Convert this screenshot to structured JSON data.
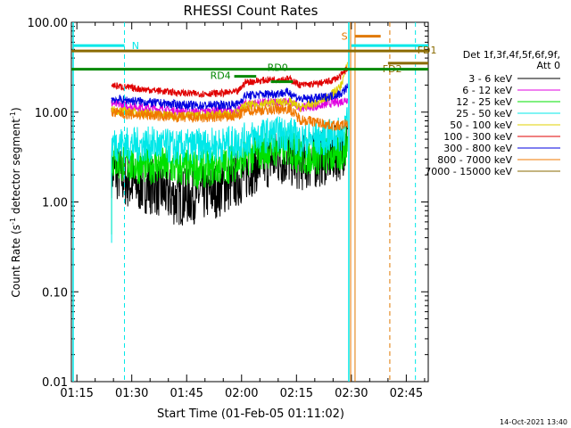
{
  "chart_data": {
    "type": "line",
    "title": "RHESSI Count Rates",
    "xlabel": "Start Time (01-Feb-05 01:11:02)",
    "ylabel_main": "Count Rate (s",
    "ylabel_sup1": "-1",
    "ylabel_mid": " detector segment",
    "ylabel_sup2": "-1",
    "ylabel_end": ")",
    "y_scale": "log",
    "ylim": [
      0.01,
      100
    ],
    "xlim_minutes": [
      73.5,
      171
    ],
    "x_ticks": [
      {
        "label": "01:15",
        "minute": 75
      },
      {
        "label": "01:30",
        "minute": 90
      },
      {
        "label": "01:45",
        "minute": 105
      },
      {
        "label": "02:00",
        "minute": 120
      },
      {
        "label": "02:15",
        "minute": 135
      },
      {
        "label": "02:30",
        "minute": 150
      },
      {
        "label": "02:45",
        "minute": 165
      }
    ],
    "y_ticks": [
      {
        "label": "100.00",
        "value": 100
      },
      {
        "label": "10.00",
        "value": 10
      },
      {
        "label": "1.00",
        "value": 1
      },
      {
        "label": "0.10",
        "value": 0.1
      },
      {
        "label": "0.01",
        "value": 0.01
      }
    ],
    "legend_header": [
      "Det 1f,3f,4f,5f,6f,9f,",
      "Att 0"
    ],
    "legend_position": "right",
    "series": [
      {
        "name": "3 - 6 keV",
        "color": "#000000",
        "points": [
          [
            84.5,
            2.3
          ],
          [
            90,
            1.6
          ],
          [
            96,
            1.5
          ],
          [
            102,
            1.1
          ],
          [
            108,
            1.2
          ],
          [
            114,
            1.4
          ],
          [
            119,
            1.8
          ],
          [
            124,
            2.6
          ],
          [
            128,
            3.0
          ],
          [
            133,
            3.1
          ],
          [
            136,
            2.7
          ],
          [
            140,
            2.9
          ],
          [
            144,
            3.3
          ],
          [
            147,
            3.6
          ],
          [
            149,
            5.0
          ]
        ]
      },
      {
        "name": "6 - 12 keV",
        "color": "#e000e0",
        "points": [
          [
            84.5,
            12.5
          ],
          [
            90,
            11.5
          ],
          [
            96,
            11
          ],
          [
            102,
            10.3
          ],
          [
            108,
            10
          ],
          [
            114,
            10.3
          ],
          [
            119,
            10.2
          ],
          [
            121,
            12.5
          ],
          [
            128,
            12.8
          ],
          [
            133,
            13
          ],
          [
            136,
            11.3
          ],
          [
            140,
            11.6
          ],
          [
            144,
            12.5
          ],
          [
            147,
            13
          ],
          [
            149,
            14
          ]
        ]
      },
      {
        "name": "12 - 25 keV",
        "color": "#00e000",
        "points": [
          [
            84.5,
            2.9
          ],
          [
            90,
            2.6
          ],
          [
            96,
            2.6
          ],
          [
            102,
            2.4
          ],
          [
            108,
            2.3
          ],
          [
            114,
            2.5
          ],
          [
            119,
            2.8
          ],
          [
            124,
            3.6
          ],
          [
            128,
            3.9
          ],
          [
            133,
            4.0
          ],
          [
            136,
            3.2
          ],
          [
            140,
            3.3
          ],
          [
            144,
            3.3
          ],
          [
            147,
            3.4
          ],
          [
            149,
            4.5
          ]
        ]
      },
      {
        "name": "25 - 50 keV",
        "color": "#00e8e8",
        "points": [
          [
            84.5,
            4.5
          ],
          [
            90,
            4.3
          ],
          [
            96,
            4.4
          ],
          [
            102,
            4.0
          ],
          [
            108,
            4.2
          ],
          [
            114,
            4.3
          ],
          [
            119,
            4.6
          ],
          [
            124,
            5.3
          ],
          [
            128,
            5.6
          ],
          [
            133,
            5.8
          ],
          [
            136,
            4.8
          ],
          [
            140,
            5.0
          ],
          [
            144,
            5.3
          ],
          [
            147,
            5.6
          ],
          [
            149,
            7.5
          ]
        ]
      },
      {
        "name": "50 - 100 keV",
        "color": "#e0d000",
        "points": [
          [
            84.5,
            10.5
          ],
          [
            90,
            10
          ],
          [
            96,
            9.6
          ],
          [
            102,
            9.1
          ],
          [
            108,
            9.2
          ],
          [
            114,
            9.5
          ],
          [
            119,
            9.8
          ],
          [
            121,
            11.8
          ],
          [
            128,
            12.6
          ],
          [
            133,
            13
          ],
          [
            136,
            11.2
          ],
          [
            140,
            12.5
          ],
          [
            144,
            15
          ],
          [
            147,
            19
          ],
          [
            149,
            35
          ]
        ]
      },
      {
        "name": "100 - 300 keV",
        "color": "#e00000",
        "points": [
          [
            84.5,
            20
          ],
          [
            90,
            18.5
          ],
          [
            96,
            17.5
          ],
          [
            102,
            16.5
          ],
          [
            108,
            16
          ],
          [
            114,
            16.2
          ],
          [
            119,
            16.8
          ],
          [
            121,
            21.5
          ],
          [
            128,
            23
          ],
          [
            133,
            23.5
          ],
          [
            136,
            20
          ],
          [
            140,
            20.5
          ],
          [
            144,
            22
          ],
          [
            147,
            25
          ],
          [
            149,
            31
          ]
        ]
      },
      {
        "name": "300 - 800 keV",
        "color": "#0000e0",
        "points": [
          [
            84.5,
            14
          ],
          [
            90,
            13.4
          ],
          [
            96,
            12.7
          ],
          [
            102,
            12.2
          ],
          [
            108,
            11.8
          ],
          [
            114,
            12
          ],
          [
            119,
            12.2
          ],
          [
            121,
            15.3
          ],
          [
            128,
            16
          ],
          [
            133,
            16.5
          ],
          [
            136,
            14
          ],
          [
            140,
            14.2
          ],
          [
            144,
            15
          ],
          [
            147,
            16
          ],
          [
            149,
            19
          ]
        ]
      },
      {
        "name": "800 - 7000 keV",
        "color": "#f07800",
        "points": [
          [
            84.5,
            10
          ],
          [
            90,
            9.4
          ],
          [
            96,
            9.2
          ],
          [
            102,
            8.8
          ],
          [
            108,
            8.6
          ],
          [
            114,
            8.8
          ],
          [
            119,
            9
          ],
          [
            121,
            10.4
          ],
          [
            128,
            10.6
          ],
          [
            133,
            11
          ],
          [
            136,
            8.3
          ],
          [
            140,
            7.8
          ],
          [
            144,
            7.2
          ],
          [
            147,
            7.0
          ],
          [
            149,
            7.6
          ]
        ]
      },
      {
        "name": "7000 - 15000 keV",
        "color": "#8a6a00",
        "points": [
          [
            149,
            50
          ],
          [
            149.5,
            50
          ]
        ]
      }
    ],
    "annotations": {
      "N": {
        "label": "N",
        "color": "#00e8e8",
        "x_start": 74,
        "x_end": 88
      },
      "S": {
        "label": "S",
        "color": "#e07800",
        "x_start": 151,
        "x_end": 158
      },
      "RD0": {
        "label": "RD0",
        "color": "#008800",
        "x_start": 128,
        "x_end": 134
      },
      "RD4": {
        "label": "RD4",
        "color": "#008800",
        "x_start": 118,
        "x_end": 124
      },
      "FD1": {
        "label": "FD1",
        "color": "#8a6a00",
        "x_start": 73.5,
        "x_end": 171
      },
      "FD2": {
        "label": "FD2",
        "color": "#8a6a00",
        "x_start": 160,
        "x_end": 171
      },
      "n_level": 55,
      "s_level": 70,
      "rd0_level": 25,
      "rd4_level": 30,
      "fd1_level": 48,
      "fd2_level": 32
    }
  },
  "footer_date": "14-Oct-2021 13:40"
}
